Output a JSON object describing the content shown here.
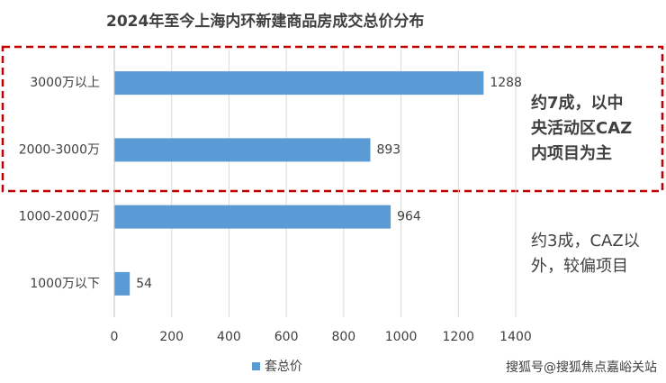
{
  "chart_data": {
    "type": "barh",
    "title": "2024年至今上海内环新建商品房成交总价分布",
    "categories": [
      "3000万以上",
      "2000-3000万",
      "1000-2000万",
      "1000万以下"
    ],
    "series": [
      {
        "name": "套总价",
        "color": "#5b9bd5",
        "values": [
          1288,
          893,
          964,
          54
        ]
      }
    ],
    "xlim": [
      0,
      1400
    ],
    "xticks": [
      0,
      200,
      400,
      600,
      800,
      1000,
      1200,
      1400
    ],
    "grid": true,
    "legend": "bottom",
    "annotations": [
      {
        "lines": [
          "约7成，以中",
          "央活动区CAZ",
          "内项目为主"
        ],
        "color": "#c00000"
      },
      {
        "lines": [
          "约3成，CAZ以",
          "外，较偏项目"
        ],
        "color": "#1a1a1a"
      }
    ],
    "watermark": "搜狐号@搜狐焦点嘉峪关站"
  }
}
